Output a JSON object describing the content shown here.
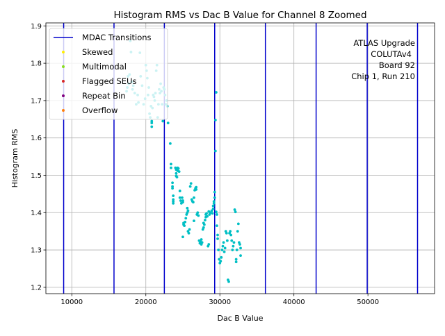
{
  "chart_data": {
    "type": "scatter",
    "title": "Histogram RMS vs Dac B Value for Channel 8 Zoomed",
    "xlabel": "Dac B Value",
    "ylabel": "Histogram RMS",
    "xlim": [
      6500,
      59000
    ],
    "ylim": [
      1.183,
      1.908
    ],
    "xticks": [
      10000,
      20000,
      30000,
      40000,
      50000
    ],
    "xtick_labels": [
      "10000",
      "20000",
      "30000",
      "40000",
      "50000"
    ],
    "yticks": [
      1.2,
      1.3,
      1.4,
      1.5,
      1.6,
      1.7,
      1.8,
      1.9
    ],
    "ytick_labels": [
      "1.2",
      "1.3",
      "1.4",
      "1.5",
      "1.6",
      "1.7",
      "1.8",
      "1.9"
    ],
    "grid": true,
    "legend_position": "top-left",
    "annotation": [
      "ATLAS Upgrade",
      "COLUTAv4",
      "Board 92",
      "Chip 1, Run 210"
    ],
    "colors": {
      "points": "#00bfc4",
      "mdac": "#0000cc",
      "skewed": "#ffee00",
      "multimodal": "#88dd22",
      "flagged": "#d62728",
      "repeat": "#800080",
      "overflow": "#ff7f0e",
      "grid": "#b0b0b0"
    },
    "legend": [
      {
        "label": "MDAC Transitions",
        "kind": "line",
        "color": "#0000cc"
      },
      {
        "label": "Skewed",
        "kind": "dot",
        "color": "#ffee00"
      },
      {
        "label": "Multimodal",
        "kind": "dot",
        "color": "#88dd22"
      },
      {
        "label": "Flagged SEUs",
        "kind": "dot",
        "color": "#d62728"
      },
      {
        "label": "Repeat Bin",
        "kind": "dot",
        "color": "#800080"
      },
      {
        "label": "Overflow",
        "kind": "dot",
        "color": "#ff7f0e"
      }
    ],
    "mdac_transitions": [
      8900,
      15700,
      22500,
      29300,
      36150,
      43000,
      49900,
      56700
    ],
    "points": [
      [
        17400,
        1.725
      ],
      [
        17500,
        1.735
      ],
      [
        17600,
        1.765
      ],
      [
        17700,
        1.745
      ],
      [
        17800,
        1.77
      ],
      [
        17900,
        1.86
      ],
      [
        18000,
        1.83
      ],
      [
        18100,
        1.75
      ],
      [
        18200,
        1.73
      ],
      [
        18300,
        1.74
      ],
      [
        18500,
        1.72
      ],
      [
        18700,
        1.69
      ],
      [
        18900,
        1.715
      ],
      [
        19000,
        1.695
      ],
      [
        19200,
        1.828
      ],
      [
        19300,
        1.765
      ],
      [
        19500,
        1.74
      ],
      [
        19700,
        1.69
      ],
      [
        19900,
        1.705
      ],
      [
        20000,
        1.795
      ],
      [
        20100,
        1.78
      ],
      [
        20200,
        1.76
      ],
      [
        20300,
        1.715
      ],
      [
        20400,
        1.735
      ],
      [
        20500,
        1.665
      ],
      [
        20600,
        1.655
      ],
      [
        20700,
        1.685
      ],
      [
        20800,
        1.645
      ],
      [
        20800,
        1.64
      ],
      [
        20800,
        1.63
      ],
      [
        20900,
        1.68
      ],
      [
        21000,
        1.715
      ],
      [
        21100,
        1.71
      ],
      [
        21200,
        1.7
      ],
      [
        21300,
        1.72
      ],
      [
        21400,
        1.78
      ],
      [
        21500,
        1.795
      ],
      [
        21600,
        1.655
      ],
      [
        21700,
        1.69
      ],
      [
        21800,
        1.73
      ],
      [
        21900,
        1.72
      ],
      [
        22000,
        1.745
      ],
      [
        22100,
        1.725
      ],
      [
        22200,
        1.69
      ],
      [
        22300,
        1.645
      ],
      [
        22400,
        1.735
      ],
      [
        22500,
        1.73
      ],
      [
        22600,
        1.715
      ],
      [
        22700,
        1.69
      ],
      [
        22800,
        1.7
      ],
      [
        22900,
        1.685
      ],
      [
        23000,
        1.64
      ],
      [
        23300,
        1.585
      ],
      [
        23400,
        1.53
      ],
      [
        23400,
        1.52
      ],
      [
        23600,
        1.48
      ],
      [
        23600,
        1.47
      ],
      [
        23600,
        1.465
      ],
      [
        23700,
        1.445
      ],
      [
        23700,
        1.435
      ],
      [
        23700,
        1.43
      ],
      [
        23700,
        1.425
      ],
      [
        24000,
        1.52
      ],
      [
        24100,
        1.515
      ],
      [
        24100,
        1.505
      ],
      [
        24100,
        1.498
      ],
      [
        24200,
        1.495
      ],
      [
        24300,
        1.52
      ],
      [
        24300,
        1.512
      ],
      [
        24400,
        1.518
      ],
      [
        24500,
        1.51
      ],
      [
        24600,
        1.44
      ],
      [
        24600,
        1.458
      ],
      [
        24700,
        1.432
      ],
      [
        24800,
        1.425
      ],
      [
        24900,
        1.44
      ],
      [
        25000,
        1.432
      ],
      [
        25000,
        1.428
      ],
      [
        25000,
        1.335
      ],
      [
        25100,
        1.372
      ],
      [
        25100,
        1.368
      ],
      [
        25200,
        1.365
      ],
      [
        25300,
        1.375
      ],
      [
        25400,
        1.385
      ],
      [
        25500,
        1.395
      ],
      [
        25600,
        1.4
      ],
      [
        25600,
        1.412
      ],
      [
        25700,
        1.405
      ],
      [
        25700,
        1.35
      ],
      [
        25800,
        1.345
      ],
      [
        25900,
        1.355
      ],
      [
        26000,
        1.47
      ],
      [
        26100,
        1.478
      ],
      [
        26200,
        1.435
      ],
      [
        26300,
        1.43
      ],
      [
        26400,
        1.428
      ],
      [
        26500,
        1.378
      ],
      [
        26500,
        1.44
      ],
      [
        26600,
        1.46
      ],
      [
        26700,
        1.465
      ],
      [
        26800,
        1.462
      ],
      [
        26800,
        1.468
      ],
      [
        26900,
        1.395
      ],
      [
        27000,
        1.4
      ],
      [
        27100,
        1.392
      ],
      [
        27200,
        1.325
      ],
      [
        27300,
        1.318
      ],
      [
        27400,
        1.322
      ],
      [
        27500,
        1.328
      ],
      [
        27500,
        1.315
      ],
      [
        27600,
        1.32
      ],
      [
        27700,
        1.355
      ],
      [
        27800,
        1.36
      ],
      [
        27800,
        1.372
      ],
      [
        27900,
        1.368
      ],
      [
        28000,
        1.38
      ],
      [
        28100,
        1.388
      ],
      [
        28100,
        1.395
      ],
      [
        28200,
        1.398
      ],
      [
        28300,
        1.39
      ],
      [
        28400,
        1.31
      ],
      [
        28500,
        1.315
      ],
      [
        28500,
        1.403
      ],
      [
        28600,
        1.395
      ],
      [
        28700,
        1.4
      ],
      [
        28900,
        1.405
      ],
      [
        29000,
        1.398
      ],
      [
        29100,
        1.418
      ],
      [
        29100,
        1.41
      ],
      [
        29200,
        1.425
      ],
      [
        29200,
        1.43
      ],
      [
        29300,
        1.44
      ],
      [
        29300,
        1.455
      ],
      [
        29400,
        1.565
      ],
      [
        29400,
        1.648
      ],
      [
        29500,
        1.722
      ],
      [
        29500,
        1.402
      ],
      [
        29600,
        1.395
      ],
      [
        29600,
        1.365
      ],
      [
        29700,
        1.34
      ],
      [
        29700,
        1.33
      ],
      [
        29800,
        1.3
      ],
      [
        29900,
        1.275
      ],
      [
        30000,
        1.265
      ],
      [
        30100,
        1.27
      ],
      [
        30200,
        1.28
      ],
      [
        30300,
        1.3
      ],
      [
        30400,
        1.31
      ],
      [
        30500,
        1.32
      ],
      [
        30600,
        1.295
      ],
      [
        30700,
        1.305
      ],
      [
        30800,
        1.35
      ],
      [
        30900,
        1.345
      ],
      [
        31000,
        1.325
      ],
      [
        31100,
        1.22
      ],
      [
        31200,
        1.215
      ],
      [
        31300,
        1.345
      ],
      [
        31400,
        1.35
      ],
      [
        31500,
        1.34
      ],
      [
        31600,
        1.325
      ],
      [
        31700,
        1.3
      ],
      [
        31800,
        1.31
      ],
      [
        31900,
        1.32
      ],
      [
        32000,
        1.408
      ],
      [
        32100,
        1.402
      ],
      [
        32200,
        1.275
      ],
      [
        32200,
        1.268
      ],
      [
        32300,
        1.3
      ],
      [
        32400,
        1.35
      ],
      [
        32500,
        1.37
      ],
      [
        32600,
        1.32
      ],
      [
        32700,
        1.315
      ],
      [
        32800,
        1.305
      ],
      [
        32800,
        1.285
      ]
    ]
  }
}
